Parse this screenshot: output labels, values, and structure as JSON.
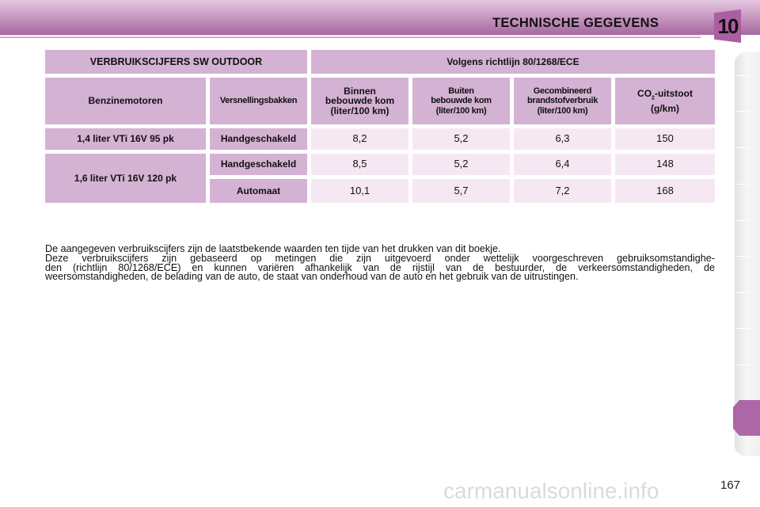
{
  "header": {
    "title": "TECHNISCHE GEGEVENS",
    "chapter": "10",
    "accent": "#a95fa0"
  },
  "table": {
    "title": "VERBRUIKSCIJFERS SW OUTDOOR",
    "standard": "Volgens richtlijn 80/1268/ECE",
    "columns": {
      "engine": "Benzinemotoren",
      "gearbox": "Versnellingsbakken",
      "urban": [
        "Binnen",
        "bebouwde kom",
        "(liter/100 km)"
      ],
      "extra_urban": [
        "Buiten",
        "bebouwde kom",
        "(liter/100 km)"
      ],
      "combined": [
        "Gecombineerd",
        "brandstofverbruik",
        "(liter/100 km)"
      ],
      "co2_prefix": "CO",
      "co2_sub": "2",
      "co2_suffix": "-uitstoot",
      "co2_unit": "(g/km)"
    },
    "engines": [
      "1,4 liter VTi 16V 95 pk",
      "1,6 liter VTi 16V 120 pk"
    ],
    "rows": [
      {
        "gearbox": "Handgeschakeld",
        "urban": "8,2",
        "extra_urban": "5,2",
        "combined": "6,3",
        "co2": "150"
      },
      {
        "gearbox": "Handgeschakeld",
        "urban": "8,5",
        "extra_urban": "5,2",
        "combined": "6,4",
        "co2": "148"
      },
      {
        "gearbox": "Automaat",
        "urban": "10,1",
        "extra_urban": "5,7",
        "combined": "7,2",
        "co2": "168"
      }
    ]
  },
  "paragraph": [
    "De aangegeven verbruikscijfers zijn de laatstbekende waarden ten tijde van het drukken van dit boekje.",
    "Deze verbruikscijfers zijn gebaseerd op metingen die zijn uitgevoerd onder wettelijk voorgeschreven gebruiksomstandighe-",
    "den (richtlijn 80/1268/ECE) en kunnen variëren afhankelijk van de rijstijl van de bestuurder, de verkeersomstandigheden, de",
    "weersomstandigheden, de belading van de auto, de staat van onderhoud van de auto en het gebruik van de uitrustingen."
  ],
  "page_number": "167",
  "watermark": "carmanualsonline.info"
}
